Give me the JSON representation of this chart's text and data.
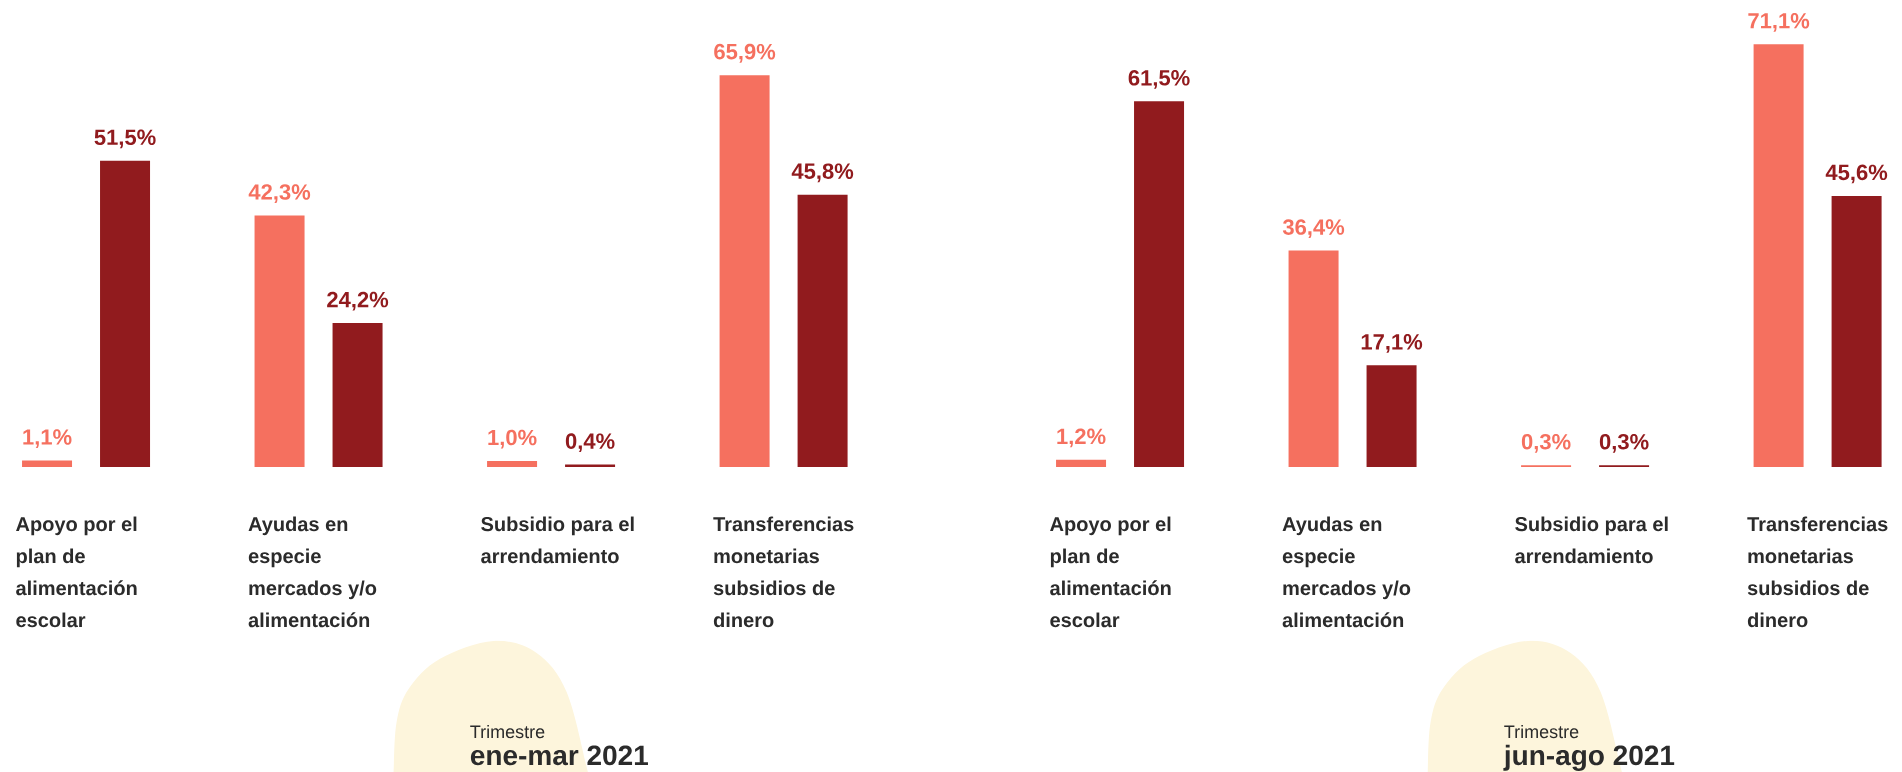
{
  "chart_data": [
    {
      "type": "bar",
      "title": "ene-mar 2021",
      "subtitle": "Trimestre",
      "categories": [
        "Apoyo por el plan de alimentación escolar",
        "Ayudas en especie mercados y/o alimentación",
        "Subsidio para el arrendamiento",
        "Transferencias monetarias subsidios de dinero"
      ],
      "series": [
        {
          "color": "#f5705f",
          "values": [
            1.1,
            42.3,
            1.0,
            65.9
          ],
          "value_labels": [
            "1,1%",
            "42,3%",
            "1,0%",
            "65,9%"
          ]
        },
        {
          "color": "#911b1e",
          "values": [
            51.5,
            24.2,
            0.4,
            45.8
          ],
          "value_labels": [
            "51,5%",
            "24,2%",
            "0,4%",
            "45,8%"
          ]
        }
      ]
    },
    {
      "type": "bar",
      "title": "jun-ago 2021",
      "subtitle": "Trimestre",
      "categories": [
        "Apoyo por el plan de alimentación escolar",
        "Ayudas en especie mercados y/o alimentación",
        "Subsidio para el arrendamiento",
        "Transferencias monetarias subsidios de dinero"
      ],
      "series": [
        {
          "color": "#f5705f",
          "values": [
            1.2,
            36.4,
            0.3,
            71.1
          ],
          "value_labels": [
            "1,2%",
            "36,4%",
            "0,3%",
            "71,1%"
          ]
        },
        {
          "color": "#911b1e",
          "values": [
            61.5,
            17.1,
            0.3,
            45.6
          ],
          "value_labels": [
            "61,5%",
            "17,1%",
            "0,3%",
            "45,6%"
          ]
        }
      ]
    }
  ]
}
